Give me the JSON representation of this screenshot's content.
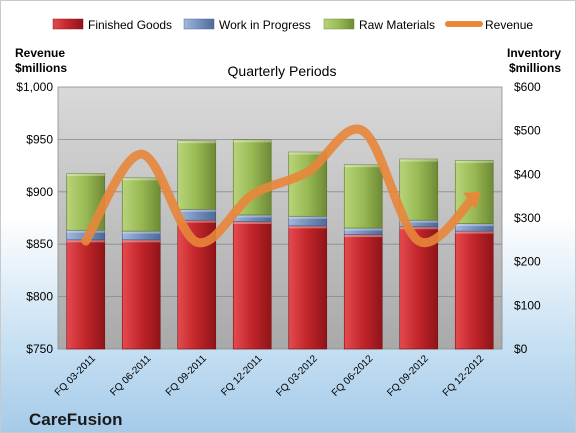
{
  "chart_data": {
    "type": "bar",
    "subtitle": "Quarterly Periods",
    "brand": "CareFusion",
    "categories": [
      "FQ 03-2011",
      "FQ 06-2011",
      "FQ 09-2011",
      "FQ 12-2011",
      "FQ 03-2012",
      "FQ 06-2012",
      "FQ 09-2012",
      "FQ 12-2012"
    ],
    "left_axis": {
      "label_line1": "Revenue",
      "label_line2": "$millions",
      "range": [
        750,
        1000
      ],
      "ticks": [
        "$750",
        "$800",
        "$850",
        "$900",
        "$950",
        "$1,000"
      ]
    },
    "right_axis": {
      "label_line1": "Inventory",
      "label_line2": "$millions",
      "range": [
        0,
        600
      ],
      "ticks": [
        "$0",
        "$100",
        "$200",
        "$300",
        "$400",
        "$500",
        "$600"
      ]
    },
    "series": [
      {
        "name": "Finished Goods",
        "axis": "right",
        "kind": "stacked-bar",
        "color": "#c0252a",
        "values": [
          250,
          250,
          295,
          292,
          282,
          262,
          280,
          270
        ]
      },
      {
        "name": "Work in Progress",
        "axis": "right",
        "kind": "stacked-bar",
        "color": "#7390bd",
        "values": [
          22,
          20,
          25,
          15,
          22,
          15,
          15,
          17
        ]
      },
      {
        "name": "Raw Materials",
        "axis": "right",
        "kind": "stacked-bar",
        "color": "#98b954",
        "values": [
          130,
          122,
          157,
          172,
          147,
          145,
          140,
          145
        ]
      },
      {
        "name": "Revenue",
        "axis": "left",
        "kind": "line",
        "color": "#e8863a",
        "values": [
          853,
          936,
          852,
          897,
          919,
          958,
          853,
          895
        ]
      }
    ],
    "grid": true,
    "legend": "top"
  }
}
